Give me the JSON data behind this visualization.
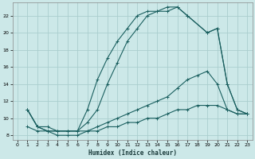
{
  "title": "",
  "xlabel": "Humidex (Indice chaleur)",
  "bg_color": "#cce8e8",
  "grid_color": "#aacece",
  "line_color": "#1a5f5f",
  "xlim": [
    -0.5,
    23.5
  ],
  "ylim": [
    7.5,
    23.5
  ],
  "xticks": [
    0,
    1,
    2,
    3,
    4,
    5,
    6,
    7,
    8,
    9,
    10,
    11,
    12,
    13,
    14,
    15,
    16,
    17,
    18,
    19,
    20,
    21,
    22,
    23
  ],
  "yticks": [
    8,
    10,
    12,
    14,
    16,
    18,
    20,
    22
  ],
  "lines": [
    {
      "x": [
        1,
        2,
        3,
        4,
        5,
        6,
        7,
        8,
        9,
        10,
        11,
        12,
        13,
        14,
        15,
        16,
        17,
        19,
        20,
        21,
        22,
        23
      ],
      "y": [
        11,
        9,
        8.5,
        8.5,
        8.5,
        8.5,
        11,
        14.5,
        17,
        19,
        20.5,
        22,
        22.5,
        22.5,
        23,
        23,
        22,
        20,
        20.5,
        14,
        11,
        10.5
      ]
    },
    {
      "x": [
        1,
        2,
        3,
        4,
        5,
        6,
        7,
        8,
        9,
        10,
        11,
        12,
        13,
        14,
        15,
        16,
        17,
        19,
        20,
        21,
        22,
        23
      ],
      "y": [
        11,
        9,
        8.5,
        8.5,
        8.5,
        8.5,
        9.5,
        11,
        14,
        16.5,
        19,
        20.5,
        22,
        22.5,
        22.5,
        23,
        22,
        20,
        20.5,
        14,
        11,
        10.5
      ]
    },
    {
      "x": [
        1,
        2,
        3,
        4,
        5,
        6,
        7,
        8,
        9,
        10,
        11,
        12,
        13,
        14,
        15,
        16,
        17,
        18,
        19,
        20,
        21,
        22,
        23
      ],
      "y": [
        11,
        9,
        9,
        8.5,
        8.5,
        8.5,
        8.5,
        9,
        9.5,
        10,
        10.5,
        11,
        11.5,
        12,
        12.5,
        13.5,
        14.5,
        15,
        15.5,
        14,
        11,
        10.5,
        10.5
      ]
    },
    {
      "x": [
        1,
        2,
        3,
        4,
        5,
        6,
        7,
        8,
        9,
        10,
        11,
        12,
        13,
        14,
        15,
        16,
        17,
        18,
        19,
        20,
        21,
        22,
        23
      ],
      "y": [
        9,
        8.5,
        8.5,
        8,
        8,
        8,
        8.5,
        8.5,
        9,
        9,
        9.5,
        9.5,
        10,
        10,
        10.5,
        11,
        11,
        11.5,
        11.5,
        11.5,
        11,
        10.5,
        10.5
      ]
    }
  ]
}
